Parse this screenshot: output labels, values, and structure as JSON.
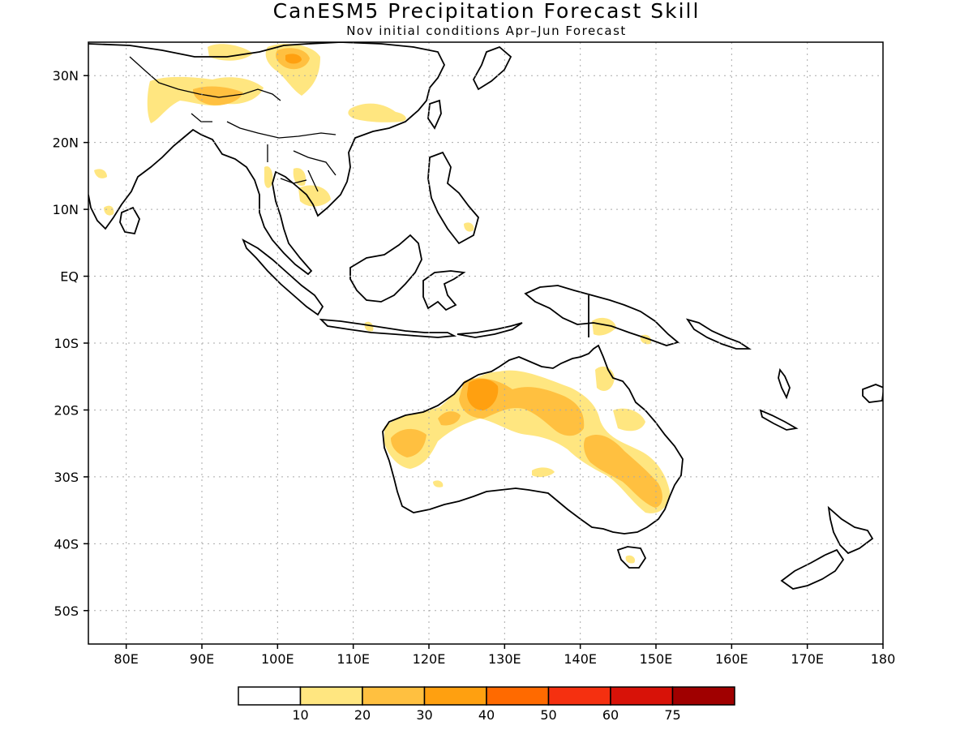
{
  "title": "CanESM5 Precipitation Forecast Skill",
  "subtitle": "Nov initial conditions  Apr–Jun Forecast",
  "map": {
    "lon_range": [
      75,
      180
    ],
    "lat_range": [
      -55,
      35
    ],
    "lon_ticks": [
      {
        "value": 80,
        "label": "80E"
      },
      {
        "value": 90,
        "label": "90E"
      },
      {
        "value": 100,
        "label": "100E"
      },
      {
        "value": 110,
        "label": "110E"
      },
      {
        "value": 120,
        "label": "120E"
      },
      {
        "value": 130,
        "label": "130E"
      },
      {
        "value": 140,
        "label": "140E"
      },
      {
        "value": 150,
        "label": "150E"
      },
      {
        "value": 160,
        "label": "160E"
      },
      {
        "value": 170,
        "label": "170E"
      },
      {
        "value": 180,
        "label": "180"
      }
    ],
    "lat_ticks": [
      {
        "value": 30,
        "label": "30N"
      },
      {
        "value": 20,
        "label": "20N"
      },
      {
        "value": 10,
        "label": "10N"
      },
      {
        "value": 0,
        "label": "EQ"
      },
      {
        "value": -10,
        "label": "10S"
      },
      {
        "value": -20,
        "label": "20S"
      },
      {
        "value": -30,
        "label": "30S"
      },
      {
        "value": -40,
        "label": "40S"
      },
      {
        "value": -50,
        "label": "50S"
      }
    ],
    "gridlines": "dotted"
  },
  "colorbar": {
    "colors": [
      "#ffffff",
      "#ffe680",
      "#ffc040",
      "#ffa010",
      "#ff6a00",
      "#f53010",
      "#d81208",
      "#a00000"
    ],
    "labels": [
      "10",
      "20",
      "30",
      "40",
      "50",
      "60",
      "75"
    ]
  },
  "shading_colors": {
    "level1": "#ffe680",
    "level2": "#ffc040",
    "level3": "#ffa010"
  },
  "coastline_color": "#000000"
}
